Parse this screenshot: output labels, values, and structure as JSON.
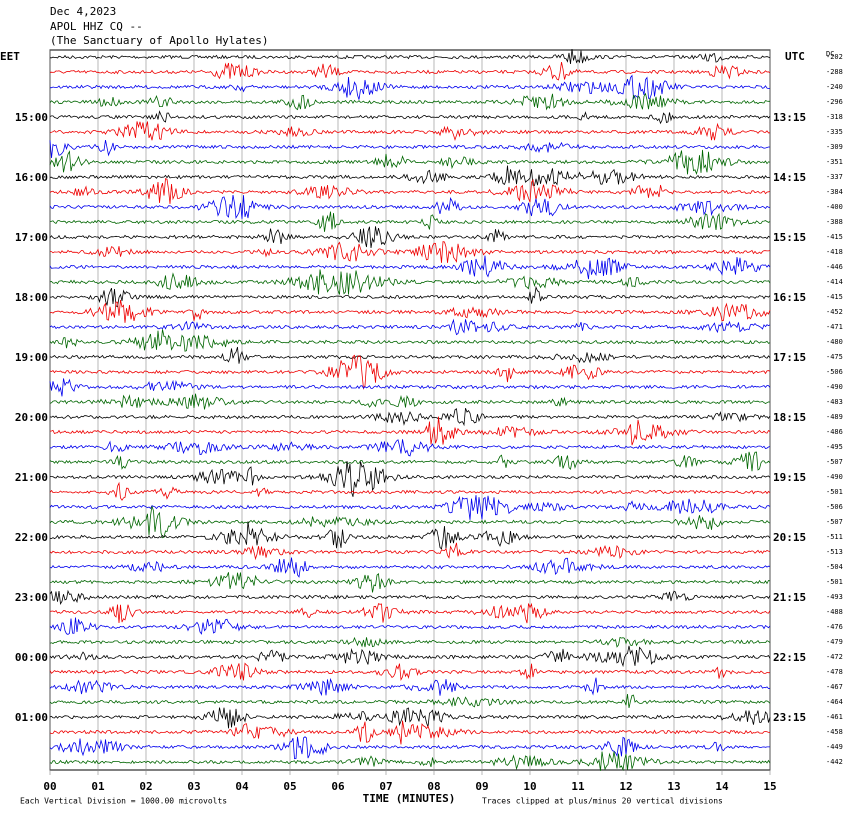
{
  "header": {
    "date": "Dec 4,2023",
    "station": "APOL HHZ CQ --",
    "site": "(The Sanctuary of Apollo Hylates)"
  },
  "left_labels": [
    "EET",
    "15:00",
    "16:00",
    "17:00",
    "18:00",
    "19:00",
    "20:00",
    "21:00",
    "22:00",
    "23:00",
    "00:00",
    "01:00"
  ],
  "right_labels": [
    "UTC",
    "13:15",
    "14:15",
    "15:15",
    "16:15",
    "17:15",
    "18:15",
    "19:15",
    "20:15",
    "21:15",
    "22:15",
    "23:15"
  ],
  "dc_header": "DC",
  "dc_values": [
    -202,
    -288,
    -240,
    -296,
    -318,
    -335,
    -309,
    -351,
    -337,
    -384,
    -400,
    -388,
    -415,
    -418,
    -446,
    -414,
    -415,
    -452,
    -471,
    -480,
    -475,
    -506,
    -490,
    -483,
    -489,
    -486,
    -495,
    -507,
    -490,
    -501,
    -506,
    -507,
    -511,
    -513,
    -504,
    -501,
    -493,
    -488,
    -476,
    -479,
    -472,
    -478,
    -467,
    -464,
    -461,
    -458,
    -449,
    -442
  ],
  "x_axis": {
    "ticks": [
      "00",
      "01",
      "02",
      "03",
      "04",
      "05",
      "06",
      "07",
      "08",
      "09",
      "10",
      "11",
      "12",
      "13",
      "14",
      "15"
    ],
    "title": "TIME (MINUTES)"
  },
  "footer": {
    "scale": "Each Vertical Division = 1000.00 microvolts",
    "clip": "Traces clipped at plus/minus 20 vertical divisions"
  }
}
